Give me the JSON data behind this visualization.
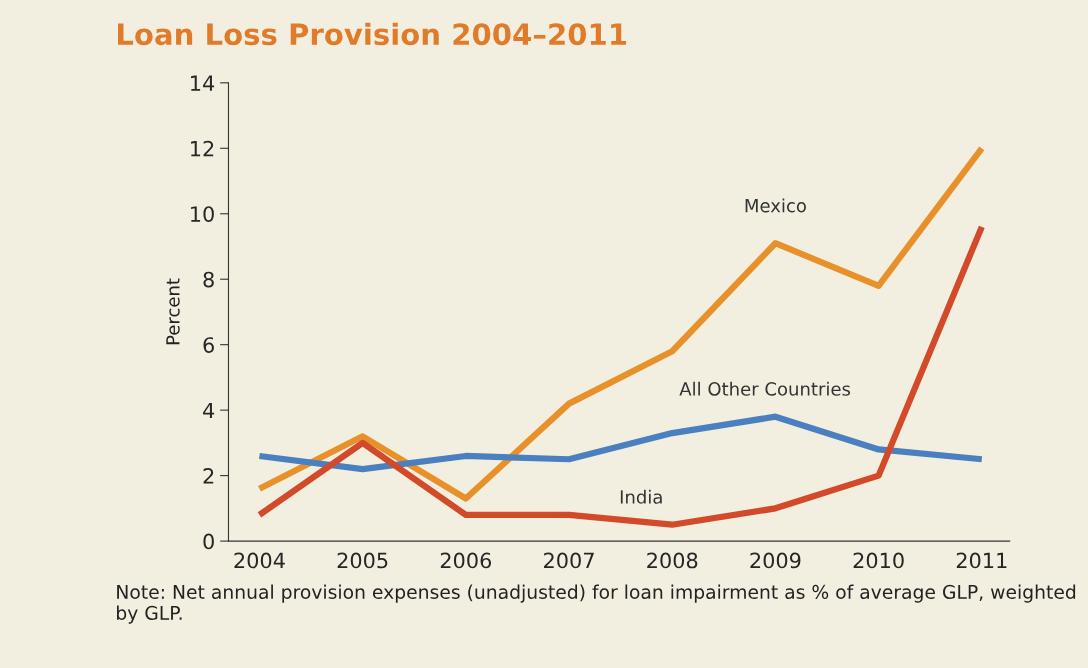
{
  "chart_data": {
    "type": "line",
    "title": "Loan Loss Provision 2004–2011",
    "ylabel": "Percent",
    "categories": [
      "2004",
      "2005",
      "2006",
      "2007",
      "2008",
      "2009",
      "2010",
      "2011"
    ],
    "series": [
      {
        "name": "Mexico",
        "color": "#e8902a",
        "values": [
          1.6,
          3.2,
          1.3,
          4.2,
          5.8,
          9.1,
          7.8,
          12.0
        ]
      },
      {
        "name": "All Other Countries",
        "color": "#4a7fc0",
        "values": [
          2.6,
          2.2,
          2.6,
          2.5,
          3.3,
          3.8,
          2.8,
          2.5
        ]
      },
      {
        "name": "India",
        "color": "#d24a2a",
        "values": [
          0.8,
          3.0,
          0.8,
          0.8,
          0.5,
          1.0,
          2.0,
          9.6
        ]
      }
    ],
    "ylim": [
      0,
      14
    ],
    "yticks": [
      0,
      2,
      4,
      6,
      8,
      10,
      12,
      14
    ],
    "grid": false,
    "legend": false,
    "marker": "none",
    "line_style": "solid",
    "annotations": [
      "Note: Net annual provision expenses (unadjusted) for loan impairment as % of average GLP, weighted by GLP."
    ]
  }
}
